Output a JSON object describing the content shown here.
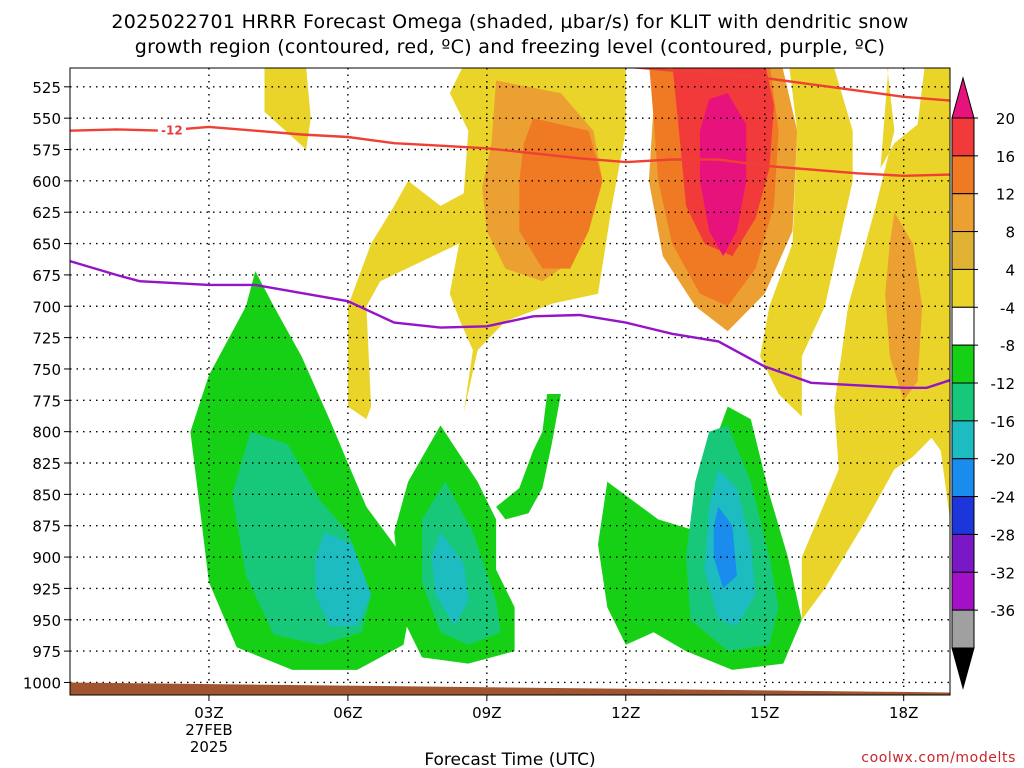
{
  "title": {
    "line1": "2025022701 HRRR Forecast Omega (shaded, µbar/s) for KLIT with dendritic snow",
    "line2": "growth region (contoured, red, ºC) and freezing level (contoured, purple, ºC)"
  },
  "credit": "coolwx.com/modelts",
  "chart_data": {
    "type": "heatmap",
    "title": "2025022701 HRRR Forecast Omega (shaded, µbar/s) for KLIT with dendritic snow growth region (contoured, red, ºC) and freezing level (contoured, purple, ºC)",
    "xlabel": "Forecast Time (UTC)",
    "ylabel": "",
    "x_axis": {
      "range_hours": [
        0,
        19
      ],
      "ticks": [
        {
          "hour": 3,
          "label": "03Z",
          "date": "27FEB",
          "year": "2025"
        },
        {
          "hour": 6,
          "label": "06Z"
        },
        {
          "hour": 9,
          "label": "09Z"
        },
        {
          "hour": 12,
          "label": "12Z"
        },
        {
          "hour": 15,
          "label": "15Z"
        },
        {
          "hour": 18,
          "label": "18Z"
        }
      ]
    },
    "y_axis": {
      "units": "mb",
      "range": [
        1010,
        510
      ],
      "ticks": [
        525,
        550,
        575,
        600,
        625,
        650,
        675,
        700,
        725,
        750,
        775,
        800,
        825,
        850,
        875,
        900,
        925,
        950,
        975,
        1000
      ]
    },
    "grid": true,
    "colorbar": {
      "ticks": [
        20,
        16,
        12,
        8,
        4,
        -4,
        -8,
        -12,
        -16,
        -20,
        -24,
        -28,
        -32,
        -36
      ],
      "colors": [
        "#e8127d",
        "#f23a3a",
        "#f07a24",
        "#eca032",
        "#e0b234",
        "#ead42a",
        "#ffffff",
        "#16d016",
        "#18c87a",
        "#1cbcc0",
        "#1a8cee",
        "#1c36dc",
        "#7a18c8",
        "#a410c8",
        "#a0a0a0",
        "#000000"
      ]
    },
    "series": [
      {
        "name": "-12",
        "color": "#ee4034",
        "x": [
          0,
          1,
          2,
          3,
          4,
          5,
          6,
          7,
          8,
          9,
          10,
          11,
          12,
          13,
          14,
          15,
          16,
          17,
          18,
          19
        ],
        "y": [
          560,
          559,
          560,
          557,
          560,
          563,
          565,
          570,
          572,
          574,
          578,
          582,
          585,
          583,
          583,
          588,
          591,
          594,
          596,
          595
        ]
      },
      {
        "name": "",
        "color": "#ee4034",
        "x": [
          10,
          11,
          12,
          13,
          14,
          15,
          16,
          17,
          18,
          19
        ],
        "y": [
          505,
          507,
          509,
          512,
          514,
          518,
          523,
          528,
          533,
          536
        ]
      },
      {
        "name": "",
        "color": "#9414c8",
        "x": [
          0,
          1,
          1.5,
          3,
          4,
          6,
          7,
          8,
          9,
          10,
          11,
          12,
          13,
          14,
          15,
          16,
          17,
          18,
          18.5,
          19
        ],
        "y": [
          664,
          675,
          680,
          683,
          683,
          696,
          713,
          717,
          716,
          708,
          707,
          713,
          722,
          728,
          748,
          761,
          763,
          765,
          765,
          759
        ]
      }
    ],
    "shaded_regions": [
      {
        "value": 4,
        "points": [
          [
            4.2,
            495
          ],
          [
            5.1,
            510
          ],
          [
            5.2,
            550
          ],
          [
            5.1,
            575
          ],
          [
            4.8,
            565
          ],
          [
            4.2,
            545
          ]
        ]
      },
      {
        "value": 4,
        "points": [
          [
            8.8,
            495
          ],
          [
            12,
            495
          ],
          [
            15.5,
            500
          ],
          [
            15.7,
            560
          ],
          [
            15.6,
            650
          ],
          [
            15.1,
            700
          ],
          [
            14.9,
            740
          ],
          [
            15.3,
            770
          ],
          [
            15.8,
            788
          ],
          [
            15.8,
            740
          ],
          [
            16.3,
            700
          ],
          [
            16.6,
            650
          ],
          [
            16.9,
            600
          ],
          [
            16.9,
            560
          ],
          [
            16.5,
            510
          ],
          [
            16.2,
            495
          ],
          [
            17.6,
            495
          ],
          [
            17.8,
            560
          ],
          [
            17.4,
            620
          ],
          [
            16.8,
            700
          ],
          [
            16.5,
            780
          ],
          [
            16.6,
            830
          ],
          [
            15.8,
            900
          ],
          [
            15.8,
            950
          ],
          [
            16.3,
            925
          ],
          [
            17.2,
            870
          ],
          [
            17.8,
            830
          ],
          [
            18.2,
            820
          ],
          [
            18.6,
            805
          ],
          [
            18.8,
            815
          ],
          [
            19,
            870
          ],
          [
            19,
            495
          ],
          [
            18.5,
            495
          ],
          [
            18.4,
            525
          ],
          [
            18.3,
            555
          ],
          [
            17.8,
            570
          ],
          [
            17.5,
            590
          ],
          [
            17.7,
            495
          ],
          [
            16.2,
            495
          ],
          [
            12,
            495
          ],
          [
            12,
            560
          ],
          [
            11.7,
            620
          ],
          [
            11.4,
            690
          ],
          [
            10.4,
            698
          ],
          [
            9.4,
            712
          ],
          [
            8.8,
            735
          ],
          [
            8.5,
            785
          ],
          [
            8.7,
            735
          ],
          [
            8.4,
            710
          ],
          [
            8.2,
            690
          ],
          [
            8.4,
            650
          ],
          [
            6.7,
            680
          ],
          [
            6.4,
            700
          ],
          [
            6.5,
            780
          ],
          [
            6.4,
            790
          ],
          [
            6.0,
            780
          ],
          [
            6.0,
            700
          ],
          [
            6.5,
            650
          ],
          [
            7.0,
            620
          ],
          [
            7.3,
            600
          ],
          [
            8.0,
            620
          ],
          [
            8.5,
            610
          ],
          [
            8.6,
            560
          ],
          [
            8.2,
            530
          ],
          [
            8.6,
            500
          ]
        ]
      },
      {
        "value": 8,
        "points": [
          [
            9.2,
            520
          ],
          [
            10.6,
            530
          ],
          [
            11.3,
            560
          ],
          [
            11.5,
            600
          ],
          [
            11.1,
            640
          ],
          [
            10.6,
            670
          ],
          [
            10.2,
            680
          ],
          [
            9.4,
            670
          ],
          [
            9.0,
            640
          ],
          [
            8.9,
            605
          ],
          [
            9.1,
            570
          ]
        ]
      },
      {
        "value": 8,
        "points": [
          [
            12.5,
            496
          ],
          [
            15.3,
            496
          ],
          [
            15.7,
            560
          ],
          [
            15.6,
            640
          ],
          [
            15.0,
            690
          ],
          [
            14.2,
            720
          ],
          [
            13.5,
            700
          ],
          [
            12.8,
            660
          ],
          [
            12.5,
            600
          ],
          [
            12.6,
            540
          ]
        ]
      },
      {
        "value": 8,
        "points": [
          [
            17.8,
            625
          ],
          [
            18.2,
            650
          ],
          [
            18.4,
            700
          ],
          [
            18.3,
            760
          ],
          [
            18.0,
            775
          ],
          [
            17.7,
            740
          ],
          [
            17.6,
            690
          ],
          [
            17.7,
            650
          ]
        ]
      },
      {
        "value": 12,
        "points": [
          [
            10.0,
            550
          ],
          [
            11.2,
            560
          ],
          [
            11.5,
            600
          ],
          [
            11.2,
            640
          ],
          [
            10.8,
            670
          ],
          [
            10.2,
            670
          ],
          [
            9.7,
            640
          ],
          [
            9.7,
            600
          ],
          [
            9.8,
            570
          ]
        ]
      },
      {
        "value": 12,
        "points": [
          [
            12.5,
            505
          ],
          [
            15.1,
            505
          ],
          [
            15.3,
            560
          ],
          [
            15.2,
            620
          ],
          [
            14.8,
            670
          ],
          [
            14.2,
            700
          ],
          [
            13.6,
            690
          ],
          [
            13.0,
            650
          ],
          [
            12.7,
            600
          ],
          [
            12.6,
            550
          ]
        ]
      },
      {
        "value": 16,
        "points": [
          [
            13.0,
            505
          ],
          [
            15.0,
            505
          ],
          [
            15.2,
            540
          ],
          [
            15.1,
            590
          ],
          [
            14.8,
            630
          ],
          [
            14.3,
            660
          ],
          [
            13.7,
            650
          ],
          [
            13.3,
            620
          ],
          [
            13.2,
            580
          ]
        ]
      },
      {
        "value": 20,
        "points": [
          [
            13.8,
            535
          ],
          [
            14.2,
            530
          ],
          [
            14.6,
            555
          ],
          [
            14.6,
            600
          ],
          [
            14.4,
            640
          ],
          [
            14.1,
            660
          ],
          [
            13.8,
            640
          ],
          [
            13.6,
            600
          ],
          [
            13.6,
            560
          ]
        ]
      },
      {
        "value": -4,
        "points": [
          [
            4.0,
            672
          ],
          [
            4.4,
            700
          ],
          [
            5.0,
            740
          ],
          [
            5.6,
            790
          ],
          [
            6.4,
            860
          ],
          [
            7.2,
            900
          ],
          [
            7.4,
            930
          ],
          [
            7.2,
            970
          ],
          [
            6.2,
            990
          ],
          [
            4.8,
            990
          ],
          [
            3.6,
            972
          ],
          [
            3.0,
            920
          ],
          [
            2.8,
            860
          ],
          [
            2.6,
            800
          ],
          [
            3.0,
            755
          ],
          [
            3.8,
            700
          ]
        ]
      },
      {
        "value": -8,
        "points": [
          [
            3.9,
            800
          ],
          [
            4.7,
            810
          ],
          [
            5.4,
            855
          ],
          [
            6.0,
            880
          ],
          [
            6.5,
            930
          ],
          [
            6.3,
            960
          ],
          [
            5.4,
            970
          ],
          [
            4.4,
            962
          ],
          [
            3.8,
            915
          ],
          [
            3.5,
            850
          ]
        ]
      },
      {
        "value": -12,
        "points": [
          [
            5.5,
            880
          ],
          [
            6.1,
            890
          ],
          [
            6.5,
            930
          ],
          [
            6.2,
            955
          ],
          [
            5.6,
            955
          ],
          [
            5.3,
            930
          ],
          [
            5.3,
            900
          ]
        ]
      },
      {
        "value": -4,
        "points": [
          [
            8.0,
            795
          ],
          [
            8.8,
            840
          ],
          [
            9.2,
            870
          ],
          [
            9.2,
            910
          ],
          [
            9.6,
            940
          ],
          [
            9.6,
            975
          ],
          [
            8.6,
            985
          ],
          [
            7.6,
            980
          ],
          [
            7.2,
            950
          ],
          [
            7.0,
            880
          ],
          [
            7.3,
            840
          ]
        ]
      },
      {
        "value": -8,
        "points": [
          [
            8.1,
            840
          ],
          [
            8.7,
            880
          ],
          [
            9.2,
            935
          ],
          [
            9.3,
            960
          ],
          [
            8.6,
            970
          ],
          [
            8.0,
            960
          ],
          [
            7.6,
            920
          ],
          [
            7.6,
            870
          ]
        ]
      },
      {
        "value": -12,
        "points": [
          [
            8.0,
            880
          ],
          [
            8.5,
            905
          ],
          [
            8.6,
            935
          ],
          [
            8.3,
            955
          ],
          [
            7.9,
            930
          ],
          [
            7.8,
            900
          ]
        ]
      },
      {
        "value": -4,
        "points": [
          [
            9.2,
            860
          ],
          [
            9.7,
            845
          ],
          [
            10.0,
            815
          ],
          [
            10.2,
            800
          ],
          [
            10.3,
            770
          ],
          [
            10.6,
            770
          ],
          [
            10.4,
            810
          ],
          [
            10.2,
            845
          ],
          [
            9.9,
            865
          ],
          [
            9.4,
            870
          ]
        ]
      },
      {
        "value": -4,
        "points": [
          [
            11.6,
            840
          ],
          [
            12.7,
            870
          ],
          [
            13.6,
            880
          ],
          [
            13.8,
            820
          ],
          [
            14.2,
            780
          ],
          [
            14.7,
            790
          ],
          [
            15.1,
            850
          ],
          [
            15.5,
            900
          ],
          [
            15.8,
            950
          ],
          [
            15.4,
            985
          ],
          [
            14.3,
            990
          ],
          [
            13.3,
            975
          ],
          [
            12.6,
            960
          ],
          [
            12.0,
            970
          ],
          [
            11.6,
            940
          ],
          [
            11.4,
            890
          ]
        ]
      },
      {
        "value": -8,
        "points": [
          [
            13.8,
            800
          ],
          [
            14.2,
            795
          ],
          [
            14.7,
            840
          ],
          [
            15.1,
            900
          ],
          [
            15.3,
            940
          ],
          [
            15.1,
            970
          ],
          [
            14.2,
            975
          ],
          [
            13.4,
            950
          ],
          [
            13.3,
            900
          ],
          [
            13.5,
            840
          ]
        ]
      },
      {
        "value": -12,
        "points": [
          [
            14.0,
            830
          ],
          [
            14.4,
            845
          ],
          [
            14.7,
            890
          ],
          [
            14.8,
            930
          ],
          [
            14.4,
            955
          ],
          [
            14.0,
            950
          ],
          [
            13.7,
            910
          ],
          [
            13.8,
            860
          ]
        ]
      },
      {
        "value": -16,
        "points": [
          [
            14.0,
            860
          ],
          [
            14.3,
            875
          ],
          [
            14.4,
            915
          ],
          [
            14.1,
            925
          ],
          [
            13.9,
            900
          ],
          [
            13.9,
            875
          ]
        ]
      }
    ],
    "terrain": {
      "color": "#a05530",
      "surface_mb": [
        {
          "hour": 0,
          "mb": 1000
        },
        {
          "hour": 19,
          "mb": 1008
        }
      ]
    }
  }
}
